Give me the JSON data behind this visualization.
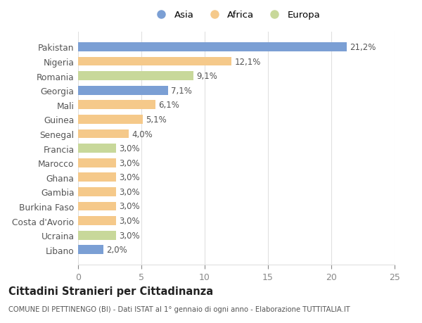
{
  "countries": [
    "Pakistan",
    "Nigeria",
    "Romania",
    "Georgia",
    "Mali",
    "Guinea",
    "Senegal",
    "Francia",
    "Marocco",
    "Ghana",
    "Gambia",
    "Burkina Faso",
    "Costa d'Avorio",
    "Ucraina",
    "Libano"
  ],
  "values": [
    21.2,
    12.1,
    9.1,
    7.1,
    6.1,
    5.1,
    4.0,
    3.0,
    3.0,
    3.0,
    3.0,
    3.0,
    3.0,
    3.0,
    2.0
  ],
  "labels": [
    "21,2%",
    "12,1%",
    "9,1%",
    "7,1%",
    "6,1%",
    "5,1%",
    "4,0%",
    "3,0%",
    "3,0%",
    "3,0%",
    "3,0%",
    "3,0%",
    "3,0%",
    "3,0%",
    "2,0%"
  ],
  "colors": [
    "#7b9fd4",
    "#f5c98a",
    "#c8d89a",
    "#7b9fd4",
    "#f5c98a",
    "#f5c98a",
    "#f5c98a",
    "#c8d89a",
    "#f5c98a",
    "#f5c98a",
    "#f5c98a",
    "#f5c98a",
    "#f5c98a",
    "#c8d89a",
    "#7b9fd4"
  ],
  "legend_labels": [
    "Asia",
    "Africa",
    "Europa"
  ],
  "legend_colors": [
    "#7b9fd4",
    "#f5c98a",
    "#c8d89a"
  ],
  "title": "Cittadini Stranieri per Cittadinanza",
  "subtitle": "COMUNE DI PETTINENGO (BI) - Dati ISTAT al 1° gennaio di ogni anno - Elaborazione TUTTITALIA.IT",
  "xlim": [
    0,
    25
  ],
  "xticks": [
    0,
    5,
    10,
    15,
    20,
    25
  ],
  "background_color": "#ffffff",
  "grid_color": "#e0e0e0",
  "label_color": "#555555",
  "tick_color": "#888888"
}
